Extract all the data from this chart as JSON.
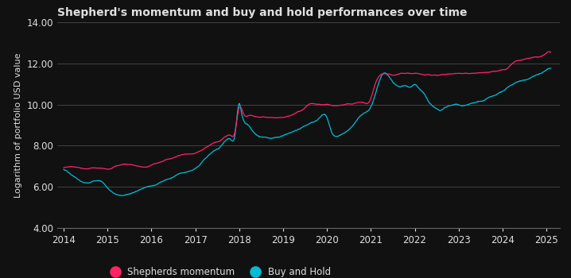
{
  "title": "Shepherd's momentum and buy and hold performances over time",
  "ylabel": "Logarithm of portfolio USD value",
  "xlabel": "",
  "ylim": [
    4.0,
    14.0
  ],
  "xlim": [
    2013.85,
    2025.3
  ],
  "yticks": [
    4.0,
    6.0,
    8.0,
    10.0,
    12.0,
    14.0
  ],
  "xticks": [
    2014,
    2015,
    2016,
    2017,
    2018,
    2019,
    2020,
    2021,
    2022,
    2023,
    2024,
    2025
  ],
  "background_color": "#111111",
  "grid_color": "#666666",
  "text_color": "#e0e0e0",
  "sm_color": "#ff2266",
  "bh_color": "#00bcd4",
  "sm_label": "Shepherds momentum",
  "bh_label": "Buy and Hold",
  "title_fontsize": 10,
  "label_fontsize": 8,
  "tick_fontsize": 8.5,
  "legend_fontsize": 8.5,
  "sm_keypoints": [
    [
      2014.0,
      6.9
    ],
    [
      2014.15,
      7.0
    ],
    [
      2014.3,
      6.95
    ],
    [
      2014.5,
      6.88
    ],
    [
      2014.7,
      6.92
    ],
    [
      2014.9,
      6.88
    ],
    [
      2015.0,
      6.85
    ],
    [
      2015.2,
      7.0
    ],
    [
      2015.4,
      7.1
    ],
    [
      2015.6,
      7.05
    ],
    [
      2015.8,
      6.95
    ],
    [
      2016.0,
      7.05
    ],
    [
      2016.2,
      7.2
    ],
    [
      2016.4,
      7.35
    ],
    [
      2016.6,
      7.5
    ],
    [
      2016.8,
      7.6
    ],
    [
      2017.0,
      7.65
    ],
    [
      2017.2,
      7.85
    ],
    [
      2017.4,
      8.1
    ],
    [
      2017.6,
      8.3
    ],
    [
      2017.8,
      8.5
    ],
    [
      2017.9,
      8.65
    ],
    [
      2018.0,
      9.85
    ],
    [
      2018.1,
      9.55
    ],
    [
      2018.2,
      9.45
    ],
    [
      2018.4,
      9.4
    ],
    [
      2018.6,
      9.38
    ],
    [
      2018.8,
      9.35
    ],
    [
      2019.0,
      9.35
    ],
    [
      2019.2,
      9.5
    ],
    [
      2019.4,
      9.7
    ],
    [
      2019.5,
      9.85
    ],
    [
      2019.6,
      10.0
    ],
    [
      2019.8,
      10.0
    ],
    [
      2020.0,
      10.0
    ],
    [
      2020.2,
      9.92
    ],
    [
      2020.4,
      10.0
    ],
    [
      2020.6,
      10.05
    ],
    [
      2020.8,
      10.1
    ],
    [
      2021.0,
      10.3
    ],
    [
      2021.1,
      11.0
    ],
    [
      2021.2,
      11.4
    ],
    [
      2021.3,
      11.5
    ],
    [
      2021.5,
      11.45
    ],
    [
      2021.7,
      11.5
    ],
    [
      2021.9,
      11.5
    ],
    [
      2022.0,
      11.5
    ],
    [
      2022.2,
      11.45
    ],
    [
      2022.4,
      11.42
    ],
    [
      2022.6,
      11.45
    ],
    [
      2022.8,
      11.5
    ],
    [
      2023.0,
      11.5
    ],
    [
      2023.2,
      11.5
    ],
    [
      2023.4,
      11.52
    ],
    [
      2023.6,
      11.55
    ],
    [
      2023.8,
      11.6
    ],
    [
      2024.0,
      11.7
    ],
    [
      2024.1,
      11.75
    ],
    [
      2024.2,
      11.95
    ],
    [
      2024.3,
      12.1
    ],
    [
      2024.4,
      12.15
    ],
    [
      2024.5,
      12.2
    ],
    [
      2024.6,
      12.25
    ],
    [
      2024.7,
      12.3
    ],
    [
      2024.8,
      12.3
    ],
    [
      2024.9,
      12.35
    ],
    [
      2025.0,
      12.5
    ],
    [
      2025.1,
      12.55
    ]
  ],
  "bh_keypoints": [
    [
      2014.0,
      6.85
    ],
    [
      2014.1,
      6.7
    ],
    [
      2014.2,
      6.55
    ],
    [
      2014.3,
      6.4
    ],
    [
      2014.5,
      6.2
    ],
    [
      2014.7,
      6.3
    ],
    [
      2014.9,
      6.2
    ],
    [
      2015.0,
      5.95
    ],
    [
      2015.1,
      5.75
    ],
    [
      2015.2,
      5.65
    ],
    [
      2015.3,
      5.6
    ],
    [
      2015.5,
      5.65
    ],
    [
      2015.7,
      5.8
    ],
    [
      2015.9,
      6.0
    ],
    [
      2016.0,
      6.05
    ],
    [
      2016.2,
      6.2
    ],
    [
      2016.4,
      6.4
    ],
    [
      2016.6,
      6.6
    ],
    [
      2016.8,
      6.75
    ],
    [
      2017.0,
      6.9
    ],
    [
      2017.2,
      7.3
    ],
    [
      2017.4,
      7.7
    ],
    [
      2017.6,
      8.0
    ],
    [
      2017.8,
      8.3
    ],
    [
      2017.9,
      8.5
    ],
    [
      2018.0,
      10.05
    ],
    [
      2018.05,
      9.6
    ],
    [
      2018.1,
      9.2
    ],
    [
      2018.2,
      9.0
    ],
    [
      2018.3,
      8.7
    ],
    [
      2018.5,
      8.45
    ],
    [
      2018.6,
      8.4
    ],
    [
      2018.8,
      8.4
    ],
    [
      2019.0,
      8.5
    ],
    [
      2019.2,
      8.65
    ],
    [
      2019.4,
      8.85
    ],
    [
      2019.6,
      9.1
    ],
    [
      2019.8,
      9.3
    ],
    [
      2020.0,
      9.35
    ],
    [
      2020.1,
      8.7
    ],
    [
      2020.2,
      8.45
    ],
    [
      2020.3,
      8.5
    ],
    [
      2020.4,
      8.6
    ],
    [
      2020.6,
      9.0
    ],
    [
      2020.8,
      9.5
    ],
    [
      2021.0,
      9.9
    ],
    [
      2021.1,
      10.5
    ],
    [
      2021.2,
      11.2
    ],
    [
      2021.3,
      11.5
    ],
    [
      2021.4,
      11.4
    ],
    [
      2021.5,
      11.1
    ],
    [
      2021.6,
      10.9
    ],
    [
      2021.7,
      10.85
    ],
    [
      2021.8,
      10.9
    ],
    [
      2021.9,
      10.85
    ],
    [
      2022.0,
      11.0
    ],
    [
      2022.1,
      10.8
    ],
    [
      2022.2,
      10.55
    ],
    [
      2022.3,
      10.2
    ],
    [
      2022.4,
      9.95
    ],
    [
      2022.5,
      9.8
    ],
    [
      2022.6,
      9.75
    ],
    [
      2022.7,
      9.85
    ],
    [
      2022.8,
      9.95
    ],
    [
      2022.9,
      10.0
    ],
    [
      2023.0,
      9.98
    ],
    [
      2023.1,
      9.95
    ],
    [
      2023.2,
      10.0
    ],
    [
      2023.3,
      10.05
    ],
    [
      2023.5,
      10.15
    ],
    [
      2023.7,
      10.35
    ],
    [
      2023.9,
      10.55
    ],
    [
      2024.0,
      10.65
    ],
    [
      2024.1,
      10.8
    ],
    [
      2024.2,
      10.95
    ],
    [
      2024.3,
      11.05
    ],
    [
      2024.4,
      11.15
    ],
    [
      2024.5,
      11.2
    ],
    [
      2024.6,
      11.25
    ],
    [
      2024.7,
      11.35
    ],
    [
      2024.8,
      11.45
    ],
    [
      2024.9,
      11.55
    ],
    [
      2025.0,
      11.7
    ],
    [
      2025.1,
      11.8
    ]
  ]
}
